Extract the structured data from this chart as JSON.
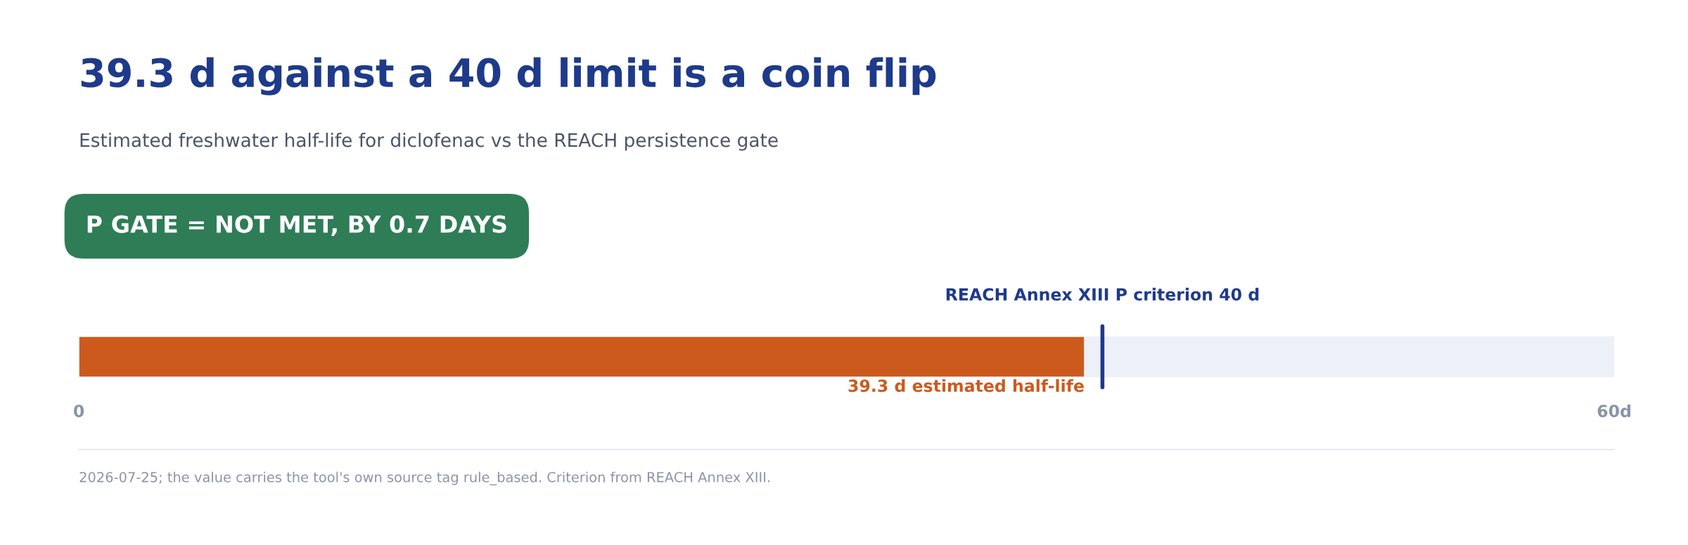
{
  "chart_data": {
    "type": "bar",
    "orientation": "horizontal",
    "title": "39.3 d against a 40 d limit is a coin flip",
    "subtitle": "Estimated freshwater half-life for diclofenac vs the REACH persistence gate",
    "categories": [
      null
    ],
    "values": [
      39.3
    ],
    "color": "#cc5a1c",
    "value_labels": [
      "39.3 d estimated half-life"
    ],
    "xlim": [
      0,
      60
    ],
    "xticks": [
      0,
      {
        "value": 60,
        "label": "60d"
      }
    ],
    "ref_lines": [
      {
        "axis": "x",
        "value": 40,
        "label": "REACH Annex XIII P criterion 40 d",
        "color": "#1e3a8a"
      }
    ],
    "annotations": [
      "P GATE = NOT MET, BY 0.7 DAYS",
      "2026-07-25; the value carries the tool's own source tag rule_based. Criterion from REACH Annex XIII."
    ],
    "grid": false
  }
}
